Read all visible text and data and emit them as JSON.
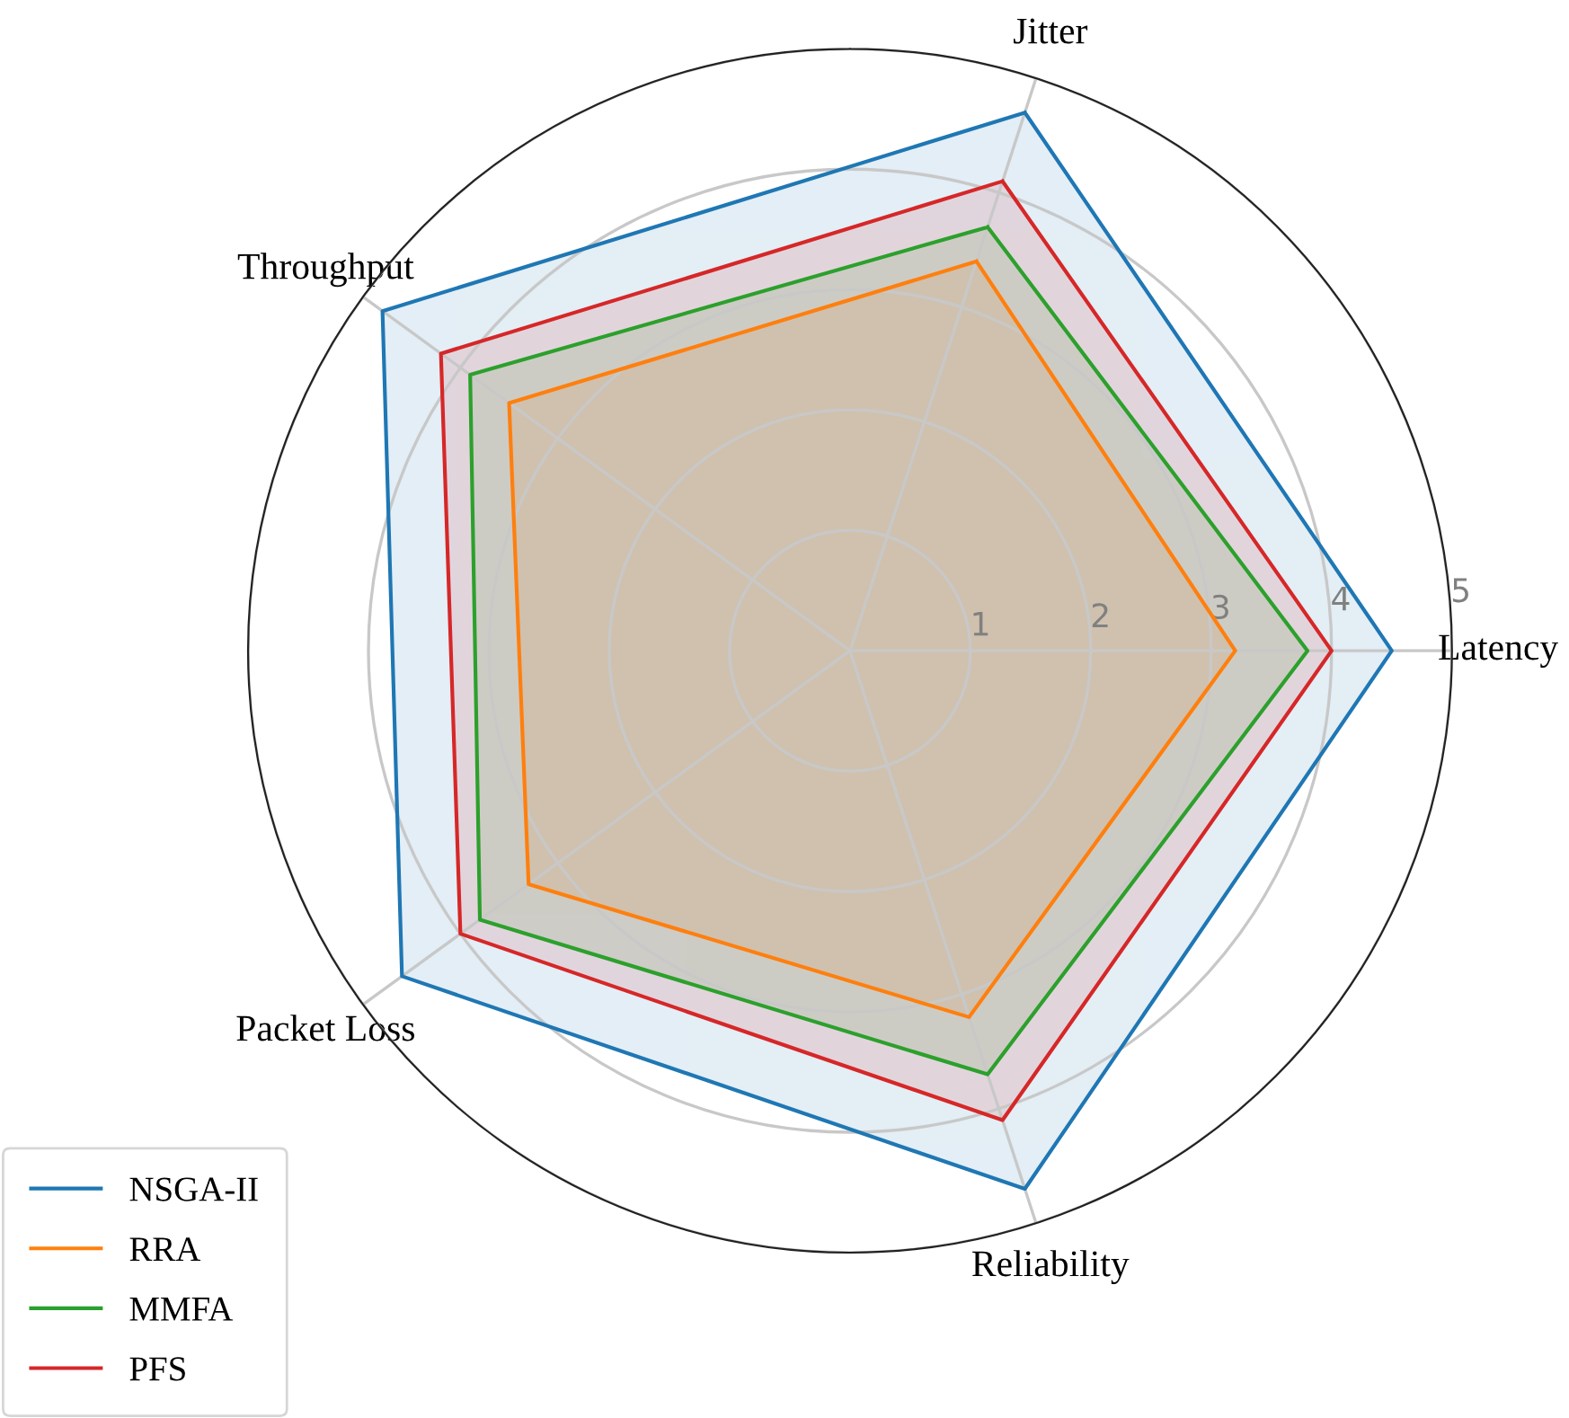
{
  "chart_data": {
    "type": "radar",
    "categories": [
      "Jitter",
      "Latency",
      "Reliability",
      "Packet Loss",
      "Throughput"
    ],
    "series": [
      {
        "name": "NSGA-II",
        "color": "#1f77b4",
        "values": [
          4.7,
          4.5,
          4.7,
          4.6,
          4.8
        ]
      },
      {
        "name": "RRA",
        "color": "#ff7f0e",
        "values": [
          3.4,
          3.2,
          3.2,
          3.3,
          3.5
        ]
      },
      {
        "name": "MMFA",
        "color": "#2ca02c",
        "values": [
          3.7,
          3.8,
          3.7,
          3.8,
          3.9
        ]
      },
      {
        "name": "PFS",
        "color": "#d62728",
        "values": [
          4.1,
          4.0,
          4.1,
          4.0,
          4.2
        ]
      }
    ],
    "ylim": [
      0,
      5
    ],
    "yticks": [
      1,
      2,
      3,
      4,
      5
    ],
    "grid": true,
    "legend": "bottom left"
  }
}
